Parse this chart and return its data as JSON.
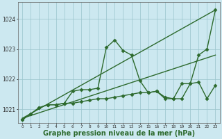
{
  "background_color": "#cce8f0",
  "grid_color": "#99c4cc",
  "line_color": "#2d6a2d",
  "xlabel": "Graphe pression niveau de la mer (hPa)",
  "xlabel_fontsize": 7,
  "ylabel_ticks": [
    1021,
    1022,
    1023,
    1024
  ],
  "xlim": [
    -0.5,
    23.5
  ],
  "ylim": [
    1020.55,
    1024.55
  ],
  "series": [
    {
      "x": [
        0,
        23
      ],
      "y": [
        1020.7,
        1024.3
      ],
      "lw": 1.0,
      "marker": null
    },
    {
      "x": [
        0,
        23
      ],
      "y": [
        1020.7,
        1022.8
      ],
      "lw": 1.0,
      "marker": null
    },
    {
      "x": [
        0,
        1,
        2,
        3,
        4,
        5,
        6,
        7,
        8,
        9,
        10,
        11,
        12,
        13,
        14,
        15,
        16,
        17,
        18,
        19,
        20,
        21,
        22,
        23
      ],
      "y": [
        1020.65,
        1020.85,
        1021.05,
        1021.15,
        1021.15,
        1021.2,
        1021.6,
        1021.65,
        1021.65,
        1021.7,
        1023.05,
        1023.3,
        1022.95,
        1022.8,
        1021.95,
        1021.55,
        1021.6,
        1021.4,
        1021.35,
        1021.85,
        1021.85,
        1022.8,
        1023.0,
        1024.3
      ],
      "lw": 1.0,
      "marker": "D",
      "markersize": 2.5
    },
    {
      "x": [
        0,
        1,
        2,
        3,
        4,
        5,
        6,
        7,
        8,
        9,
        10,
        11,
        12,
        13,
        14,
        15,
        16,
        17,
        18,
        19,
        20,
        21,
        22,
        23
      ],
      "y": [
        1020.65,
        1020.85,
        1021.05,
        1021.15,
        1021.15,
        1021.2,
        1021.2,
        1021.25,
        1021.3,
        1021.35,
        1021.35,
        1021.4,
        1021.45,
        1021.5,
        1021.55,
        1021.55,
        1021.6,
        1021.35,
        1021.35,
        1021.35,
        1021.85,
        1021.9,
        1021.35,
        1021.8
      ],
      "lw": 1.0,
      "marker": "D",
      "markersize": 2.5
    }
  ]
}
